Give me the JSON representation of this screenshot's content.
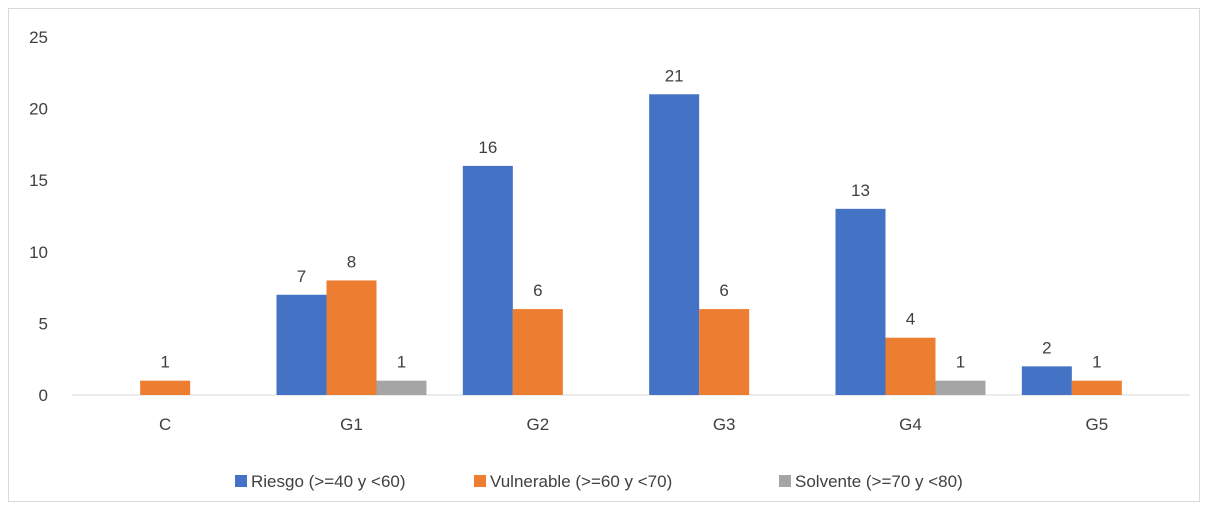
{
  "chart_data": {
    "type": "bar",
    "categories": [
      "C",
      "G1",
      "G2",
      "G3",
      "G4",
      "G5"
    ],
    "series": [
      {
        "name": "Riesgo (>=40 y <60)",
        "color": "#4472c4",
        "values": [
          null,
          7,
          16,
          21,
          13,
          2
        ]
      },
      {
        "name": "Vulnerable (>=60 y <70)",
        "color": "#ed7d31",
        "values": [
          1,
          8,
          6,
          6,
          4,
          1
        ]
      },
      {
        "name": "Solvente (>=70 y <80)",
        "color": "#a5a5a5",
        "values": [
          null,
          1,
          null,
          null,
          1,
          null
        ]
      }
    ],
    "ylim": [
      0,
      25
    ],
    "yticks": [
      0,
      5,
      10,
      15,
      20,
      25
    ],
    "legend_position": "bottom",
    "grid": false,
    "data_labels": true
  }
}
